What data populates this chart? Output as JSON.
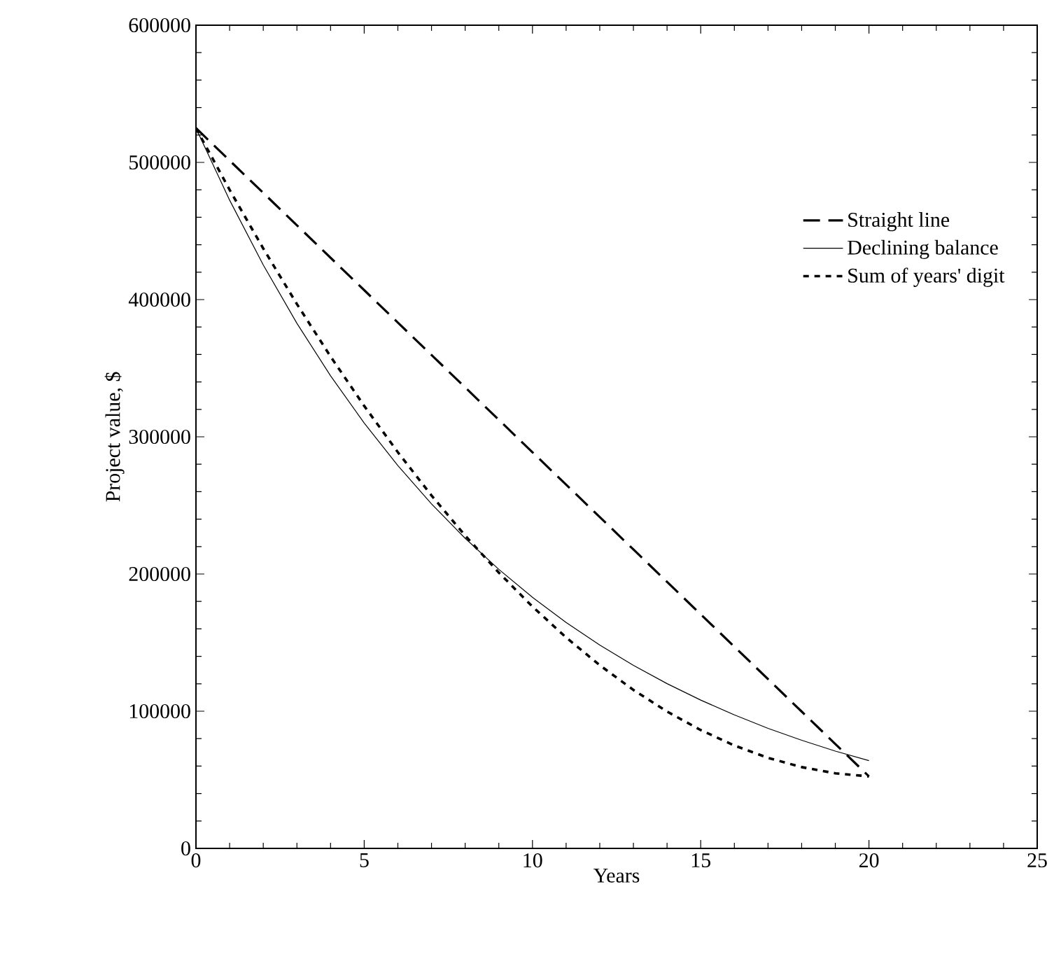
{
  "chart_data": {
    "type": "line",
    "xlabel": "Years",
    "ylabel": "Project value, $",
    "x": [
      0,
      1,
      2,
      3,
      4,
      5,
      6,
      7,
      8,
      9,
      10,
      11,
      12,
      13,
      14,
      15,
      16,
      17,
      18,
      19,
      20
    ],
    "series": [
      {
        "name": "Straight line",
        "color": "#000000",
        "line_style": "dashed",
        "values": [
          525000,
          501375,
          477750,
          454125,
          430500,
          406875,
          383250,
          359625,
          336000,
          312375,
          288750,
          265125,
          241500,
          217875,
          194250,
          170625,
          147000,
          123375,
          99750,
          76125,
          52500
        ]
      },
      {
        "name": "Declining balance",
        "color": "#000000",
        "line_style": "solid",
        "values": [
          525000,
          472500,
          425250,
          382725,
          344450,
          310000,
          279000,
          251100,
          226000,
          203400,
          183000,
          164700,
          148250,
          133400,
          120100,
          108100,
          97300,
          87500,
          78800,
          70900,
          64000
        ]
      },
      {
        "name": "Sum of years' digit",
        "color": "#000000",
        "line_style": "dotted",
        "values": [
          525000,
          480000,
          437250,
          396750,
          358500,
          322500,
          288750,
          257250,
          228000,
          201000,
          176250,
          153750,
          133500,
          115500,
          99750,
          86250,
          75000,
          66000,
          59250,
          54750,
          52500
        ]
      }
    ],
    "xlim": [
      0,
      25
    ],
    "ylim": [
      0,
      600000
    ],
    "xticks": [
      0,
      5,
      10,
      15,
      20,
      25
    ],
    "yticks": [
      0,
      100000,
      200000,
      300000,
      400000,
      500000,
      600000
    ],
    "legend": "right",
    "grid": false,
    "marker": "none"
  }
}
